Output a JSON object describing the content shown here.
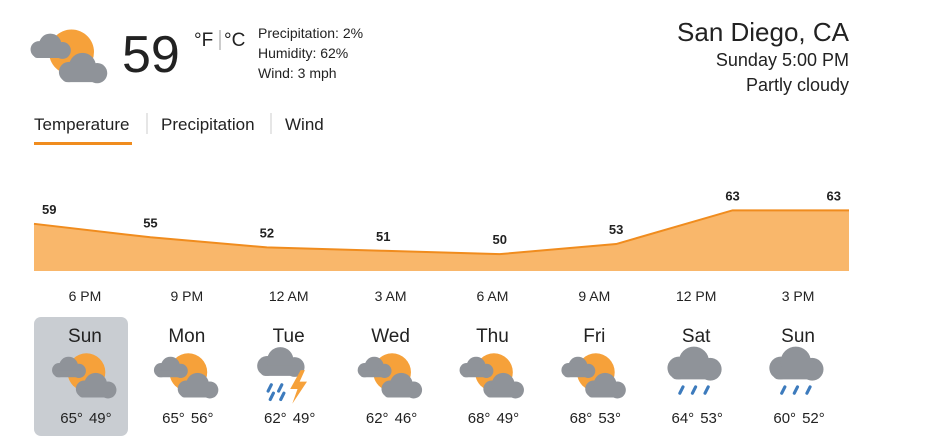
{
  "current": {
    "temperature": "59",
    "unit_f": "°F",
    "unit_c": "°C",
    "details": [
      "Precipitation: 2%",
      "Humidity: 62%",
      "Wind: 3 mph"
    ]
  },
  "location": {
    "name": "San Diego, CA",
    "time": "Sunday 5:00 PM",
    "condition": "Partly cloudy"
  },
  "tabs": [
    "Temperature",
    "Precipitation",
    "Wind"
  ],
  "chart_data": {
    "type": "area",
    "color": "#f9b76b",
    "line_color": "#f08c1e",
    "categories": [
      "6 PM",
      "9 PM",
      "12 AM",
      "3 AM",
      "6 AM",
      "9 AM",
      "12 PM",
      "3 PM"
    ],
    "values": [
      59,
      55,
      52,
      51,
      50,
      53,
      63,
      63
    ],
    "ylim": [
      45,
      72
    ]
  },
  "days": [
    {
      "day": "Sun",
      "high": "65°",
      "low": "49°"
    },
    {
      "day": "Mon",
      "high": "65°",
      "low": "56°"
    },
    {
      "day": "Tue",
      "high": "62°",
      "low": "49°"
    },
    {
      "day": "Wed",
      "high": "62°",
      "low": "46°"
    },
    {
      "day": "Thu",
      "high": "68°",
      "low": "49°"
    },
    {
      "day": "Fri",
      "high": "68°",
      "low": "53°"
    },
    {
      "day": "Sat",
      "high": "64°",
      "low": "53°"
    },
    {
      "day": "Sun",
      "high": "60°",
      "low": "52°"
    }
  ]
}
